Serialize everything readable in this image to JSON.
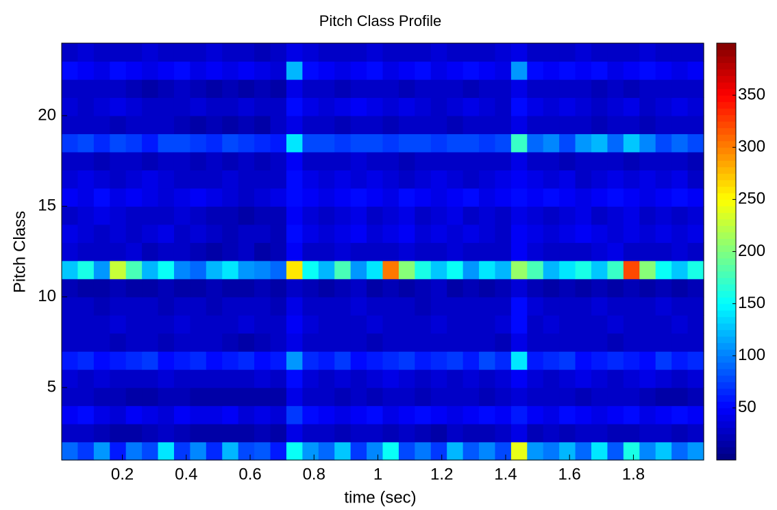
{
  "chart_data": {
    "type": "heatmap",
    "title": "Pitch Class Profile",
    "xlabel": "time (sec)",
    "ylabel": "Pitch Class",
    "xlim": [
      0.01,
      2.02
    ],
    "xticks": [
      0.2,
      0.4,
      0.6,
      0.8,
      1,
      1.2,
      1.4,
      1.6,
      1.8
    ],
    "ylim": [
      1,
      24
    ],
    "yticks": [
      5,
      10,
      15,
      20
    ],
    "colormap": "jet",
    "colorbar": {
      "lim": [
        0,
        400
      ],
      "ticks": [
        50,
        100,
        150,
        200,
        250,
        300,
        350
      ]
    },
    "values": [
      [
        90,
        70,
        110,
        60,
        95,
        80,
        140,
        70,
        100,
        65,
        120,
        75,
        85,
        60,
        150,
        110,
        90,
        130,
        70,
        105,
        155,
        80,
        95,
        70,
        120,
        85,
        100,
        75,
        240,
        110,
        95,
        120,
        90,
        140,
        85,
        160,
        100,
        130,
        90,
        110
      ],
      [
        25,
        30,
        20,
        15,
        15,
        20,
        25,
        20,
        15,
        15,
        15,
        15,
        20,
        15,
        40,
        30,
        25,
        20,
        25,
        30,
        20,
        25,
        20,
        15,
        25,
        20,
        20,
        25,
        40,
        20,
        25,
        20,
        30,
        25,
        20,
        20,
        25,
        30,
        20,
        25
      ],
      [
        45,
        50,
        40,
        35,
        45,
        40,
        35,
        45,
        40,
        40,
        45,
        35,
        40,
        35,
        70,
        50,
        45,
        40,
        45,
        50,
        40,
        45,
        50,
        45,
        40,
        45,
        50,
        45,
        60,
        45,
        40,
        50,
        45,
        40,
        45,
        50,
        40,
        45,
        50,
        45
      ],
      [
        30,
        25,
        20,
        20,
        15,
        15,
        20,
        20,
        15,
        15,
        15,
        15,
        15,
        15,
        40,
        30,
        25,
        20,
        25,
        20,
        25,
        30,
        20,
        25,
        30,
        25,
        20,
        25,
        35,
        25,
        30,
        25,
        20,
        25,
        30,
        25,
        20,
        15,
        15,
        20
      ],
      [
        35,
        30,
        35,
        30,
        25,
        30,
        35,
        30,
        30,
        25,
        30,
        30,
        35,
        30,
        50,
        35,
        30,
        35,
        30,
        35,
        40,
        35,
        30,
        35,
        30,
        35,
        30,
        35,
        45,
        35,
        30,
        35,
        40,
        35,
        30,
        35,
        40,
        35,
        30,
        35
      ],
      [
        60,
        65,
        55,
        60,
        65,
        70,
        55,
        60,
        65,
        55,
        60,
        65,
        55,
        60,
        110,
        65,
        60,
        70,
        55,
        60,
        65,
        70,
        60,
        65,
        70,
        60,
        80,
        65,
        140,
        60,
        65,
        70,
        55,
        60,
        65,
        60,
        55,
        70,
        60,
        65
      ],
      [
        25,
        30,
        25,
        20,
        30,
        25,
        20,
        25,
        30,
        25,
        20,
        15,
        20,
        25,
        40,
        30,
        25,
        30,
        25,
        20,
        25,
        30,
        25,
        30,
        25,
        30,
        25,
        20,
        40,
        25,
        30,
        25,
        30,
        25,
        20,
        30,
        25,
        30,
        25,
        30
      ],
      [
        30,
        25,
        30,
        35,
        30,
        25,
        30,
        35,
        30,
        25,
        30,
        35,
        30,
        25,
        45,
        35,
        30,
        25,
        30,
        35,
        30,
        25,
        30,
        35,
        30,
        25,
        30,
        35,
        50,
        30,
        35,
        30,
        25,
        30,
        35,
        30,
        25,
        30,
        35,
        30
      ],
      [
        25,
        30,
        20,
        25,
        30,
        25,
        20,
        25,
        30,
        20,
        25,
        30,
        25,
        20,
        40,
        30,
        25,
        30,
        35,
        25,
        30,
        25,
        20,
        25,
        30,
        25,
        30,
        25,
        50,
        35,
        30,
        25,
        30,
        35,
        30,
        25,
        30,
        35,
        25,
        30
      ],
      [
        20,
        15,
        15,
        20,
        15,
        15,
        20,
        15,
        15,
        20,
        15,
        15,
        20,
        15,
        30,
        20,
        15,
        20,
        25,
        15,
        20,
        15,
        20,
        25,
        15,
        20,
        15,
        20,
        35,
        20,
        15,
        20,
        15,
        20,
        15,
        20,
        15,
        20,
        15,
        20
      ],
      [
        130,
        160,
        110,
        230,
        180,
        120,
        150,
        100,
        90,
        120,
        140,
        110,
        100,
        90,
        260,
        150,
        120,
        180,
        110,
        140,
        300,
        200,
        160,
        130,
        150,
        110,
        140,
        120,
        210,
        180,
        120,
        140,
        160,
        130,
        170,
        320,
        200,
        150,
        130,
        160
      ],
      [
        35,
        30,
        25,
        30,
        35,
        20,
        25,
        30,
        20,
        15,
        20,
        25,
        15,
        20,
        45,
        30,
        25,
        35,
        30,
        25,
        30,
        35,
        25,
        30,
        35,
        30,
        25,
        30,
        45,
        35,
        30,
        25,
        30,
        35,
        40,
        30,
        25,
        30,
        35,
        30
      ],
      [
        40,
        35,
        30,
        35,
        30,
        35,
        40,
        30,
        35,
        25,
        20,
        30,
        25,
        20,
        50,
        40,
        35,
        40,
        45,
        35,
        40,
        45,
        35,
        40,
        35,
        40,
        35,
        30,
        45,
        40,
        35,
        40,
        45,
        40,
        35,
        40,
        35,
        40,
        35,
        40
      ],
      [
        30,
        35,
        40,
        35,
        30,
        25,
        30,
        35,
        25,
        20,
        20,
        15,
        20,
        20,
        45,
        35,
        30,
        35,
        40,
        30,
        35,
        40,
        30,
        35,
        40,
        30,
        35,
        30,
        40,
        35,
        30,
        35,
        40,
        30,
        35,
        40,
        30,
        35,
        30,
        35
      ],
      [
        45,
        40,
        50,
        40,
        45,
        40,
        35,
        40,
        45,
        40,
        35,
        30,
        35,
        40,
        55,
        45,
        40,
        45,
        50,
        45,
        40,
        50,
        45,
        40,
        45,
        50,
        40,
        45,
        55,
        45,
        50,
        45,
        40,
        45,
        50,
        45,
        40,
        45,
        50,
        45
      ],
      [
        35,
        40,
        35,
        30,
        35,
        40,
        35,
        30,
        25,
        30,
        35,
        30,
        25,
        30,
        50,
        40,
        35,
        40,
        35,
        40,
        35,
        30,
        35,
        40,
        35,
        30,
        35,
        40,
        45,
        40,
        35,
        40,
        30,
        35,
        40,
        35,
        40,
        35,
        40,
        30
      ],
      [
        30,
        25,
        20,
        25,
        30,
        20,
        25,
        30,
        20,
        25,
        20,
        25,
        20,
        25,
        45,
        30,
        25,
        30,
        35,
        30,
        25,
        20,
        25,
        30,
        25,
        30,
        25,
        30,
        40,
        30,
        25,
        20,
        25,
        30,
        25,
        20,
        25,
        30,
        25,
        20
      ],
      [
        70,
        80,
        65,
        75,
        70,
        60,
        75,
        80,
        70,
        65,
        75,
        70,
        65,
        60,
        140,
        80,
        75,
        70,
        80,
        75,
        70,
        80,
        75,
        70,
        80,
        75,
        70,
        75,
        170,
        90,
        100,
        80,
        110,
        120,
        90,
        130,
        100,
        80,
        90,
        75
      ],
      [
        30,
        25,
        30,
        20,
        25,
        30,
        25,
        20,
        15,
        20,
        15,
        20,
        15,
        25,
        40,
        30,
        25,
        20,
        25,
        30,
        20,
        25,
        30,
        25,
        20,
        25,
        30,
        25,
        40,
        30,
        25,
        30,
        25,
        20,
        25,
        30,
        20,
        25,
        30,
        25
      ],
      [
        35,
        30,
        35,
        40,
        35,
        30,
        25,
        30,
        35,
        25,
        30,
        35,
        30,
        25,
        50,
        40,
        35,
        40,
        45,
        40,
        35,
        40,
        35,
        30,
        35,
        40,
        35,
        30,
        50,
        40,
        35,
        40,
        35,
        30,
        35,
        40,
        30,
        35,
        40,
        35
      ],
      [
        30,
        25,
        30,
        25,
        20,
        15,
        20,
        25,
        20,
        15,
        20,
        15,
        20,
        15,
        40,
        30,
        25,
        20,
        25,
        30,
        25,
        20,
        25,
        30,
        25,
        20,
        25,
        30,
        40,
        30,
        25,
        30,
        25,
        20,
        25,
        20,
        25,
        30,
        25,
        30
      ],
      [
        50,
        45,
        40,
        50,
        45,
        40,
        45,
        50,
        40,
        45,
        40,
        45,
        40,
        35,
        120,
        50,
        45,
        40,
        45,
        50,
        40,
        45,
        50,
        40,
        45,
        50,
        45,
        40,
        110,
        50,
        45,
        55,
        45,
        50,
        40,
        45,
        50,
        45,
        40,
        45
      ],
      [
        30,
        35,
        30,
        25,
        30,
        35,
        30,
        25,
        30,
        35,
        30,
        25,
        20,
        25,
        40,
        35,
        30,
        25,
        30,
        35,
        30,
        25,
        30,
        35,
        30,
        25,
        30,
        35,
        40,
        30,
        25,
        30,
        35,
        30,
        25,
        30,
        35,
        30,
        25,
        30
      ]
    ]
  }
}
